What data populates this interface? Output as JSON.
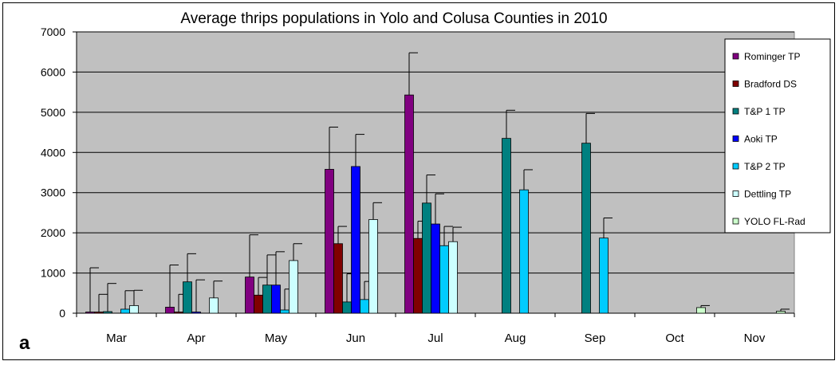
{
  "chart_data": {
    "type": "bar",
    "title": "Average thrips populations in Yolo and Colusa Counties in 2010",
    "panel_label": "a",
    "xlabel": "",
    "ylabel": "",
    "ylim": [
      0,
      7000
    ],
    "yticks": [
      "0",
      "1000",
      "2000",
      "3000",
      "4000",
      "5000",
      "6000",
      "7000"
    ],
    "categories": [
      "Mar",
      "Apr",
      "May",
      "Jun",
      "Jul",
      "Aug",
      "Sep",
      "Oct",
      "Nov"
    ],
    "grid": true,
    "legend_position": "right",
    "plot_background": "#c0c0c0",
    "series": [
      {
        "name": "Rominger TP",
        "color": "#800080",
        "values": [
          30,
          150,
          900,
          3580,
          5430,
          null,
          null,
          null,
          null
        ],
        "errors": [
          1100,
          1050,
          1050,
          1050,
          1050,
          null,
          null,
          null,
          null
        ]
      },
      {
        "name": "Bradford DS",
        "color": "#800000",
        "values": [
          30,
          30,
          450,
          1730,
          1860,
          null,
          null,
          null,
          null
        ],
        "errors": [
          440,
          440,
          440,
          430,
          430,
          null,
          null,
          null,
          null
        ]
      },
      {
        "name": "T&P 1 TP",
        "color": "#008080",
        "values": [
          40,
          780,
          700,
          280,
          2740,
          4350,
          4230,
          null,
          null
        ],
        "errors": [
          700,
          700,
          750,
          700,
          700,
          700,
          740,
          null,
          null
        ]
      },
      {
        "name": "Aoki TP",
        "color": "#0000ff",
        "values": [
          null,
          30,
          700,
          3650,
          2220,
          null,
          null,
          null,
          null
        ],
        "errors": [
          null,
          800,
          830,
          800,
          750,
          null,
          null,
          null,
          null
        ]
      },
      {
        "name": "T&P 2 TP",
        "color": "#00ccff",
        "values": [
          100,
          null,
          80,
          340,
          1680,
          3070,
          1870,
          null,
          null
        ],
        "errors": [
          460,
          null,
          520,
          450,
          480,
          500,
          500,
          null,
          null
        ]
      },
      {
        "name": "Dettling TP",
        "color": "#ccffff",
        "values": [
          190,
          380,
          1310,
          2330,
          1780,
          null,
          null,
          null,
          null
        ],
        "errors": [
          380,
          420,
          420,
          420,
          360,
          null,
          null,
          null,
          null
        ]
      },
      {
        "name": "YOLO FL-Rad",
        "color": "#ccffcc",
        "values": [
          null,
          null,
          null,
          null,
          null,
          null,
          null,
          140,
          50
        ],
        "errors": [
          null,
          null,
          null,
          null,
          null,
          null,
          null,
          50,
          50
        ]
      }
    ]
  }
}
